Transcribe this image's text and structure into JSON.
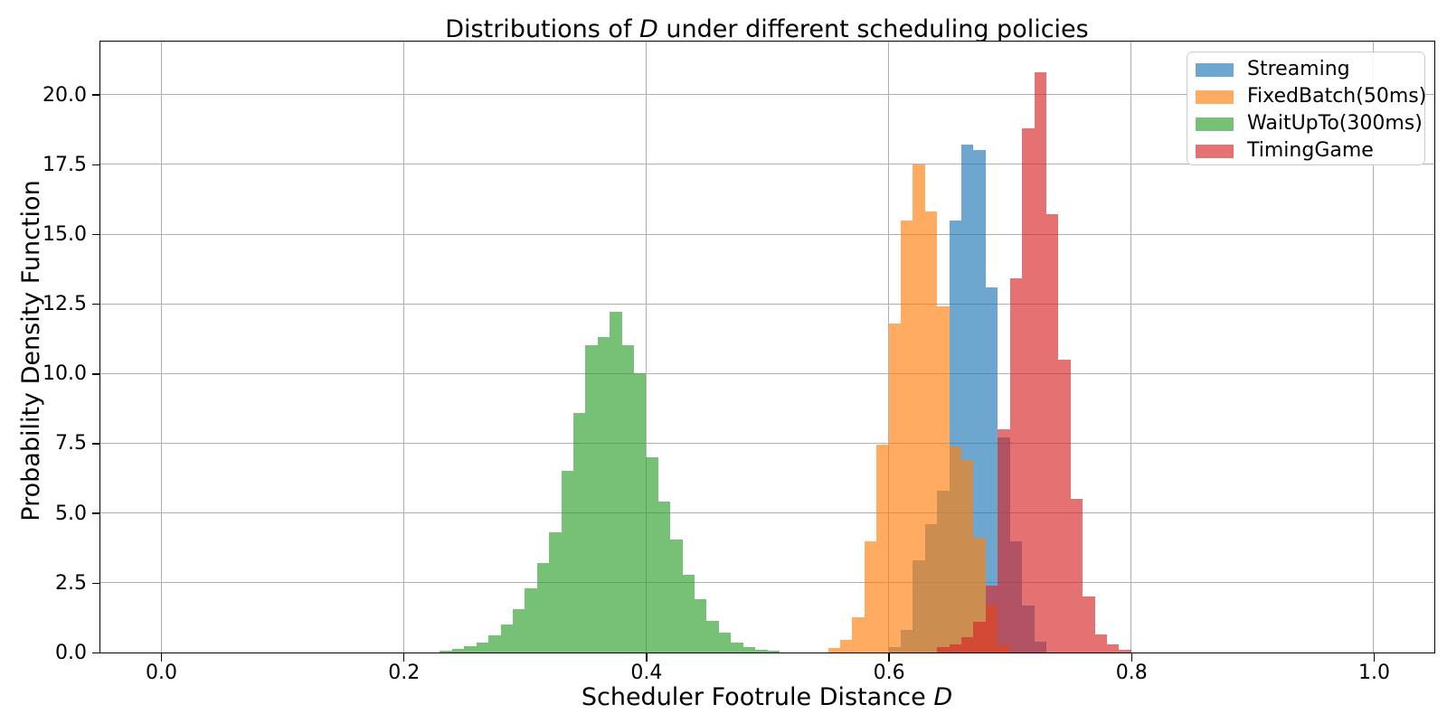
{
  "figure": {
    "title": {
      "pre": "Distributions of ",
      "italic": "D",
      "post": " under different scheduling policies"
    },
    "xlabel": {
      "pre": "Scheduler Footrule Distance ",
      "italic": "D"
    },
    "ylabel": "Probability Density Function"
  },
  "chart_data": {
    "type": "histogram",
    "overlay": true,
    "title": "Distributions of D under different scheduling policies",
    "xlabel": "Scheduler Footrule Distance D",
    "ylabel": "Probability Density Function",
    "bin_width": 0.01,
    "alpha": 0.65,
    "xlim": [
      -0.05,
      1.05
    ],
    "ylim": [
      0,
      21.9
    ],
    "grid": true,
    "grid_color": "#b0b0b0",
    "legend_position": "upper right",
    "xticks": {
      "values": [
        0.0,
        0.2,
        0.4,
        0.6,
        0.8,
        1.0
      ],
      "labels": [
        "0.0",
        "0.2",
        "0.4",
        "0.6",
        "0.8",
        "1.0"
      ]
    },
    "yticks": {
      "values": [
        0.0,
        2.5,
        5.0,
        7.5,
        10.0,
        12.5,
        15.0,
        17.5,
        20.0
      ],
      "labels": [
        "0.0",
        "2.5",
        "5.0",
        "7.5",
        "10.0",
        "12.5",
        "15.0",
        "17.5",
        "20.0"
      ]
    },
    "series": [
      {
        "name": "Streaming",
        "color": "#1f77b4",
        "bin_start": 0.6,
        "heights": [
          0.2,
          0.8,
          3.3,
          4.6,
          5.8,
          15.5,
          18.2,
          18.0,
          13.1,
          7.7,
          4.0,
          1.7,
          0.4
        ]
      },
      {
        "name": "FixedBatch(50ms)",
        "color": "#ff7f0e",
        "bin_start": 0.55,
        "heights": [
          0.15,
          0.45,
          1.25,
          4.0,
          7.45,
          11.8,
          15.5,
          17.5,
          15.8,
          12.4,
          7.4,
          6.9,
          4.1,
          1.7,
          0.25
        ]
      },
      {
        "name": "WaitUpTo(300ms)",
        "color": "#2ca02c",
        "bin_start": 0.23,
        "heights": [
          0.05,
          0.12,
          0.22,
          0.35,
          0.6,
          1.0,
          1.55,
          2.3,
          3.2,
          4.3,
          6.5,
          8.6,
          11.0,
          11.3,
          12.2,
          11.0,
          10.0,
          7.0,
          5.4,
          4.05,
          2.8,
          1.9,
          1.15,
          0.7,
          0.35,
          0.2,
          0.1,
          0.05
        ]
      },
      {
        "name": "TimingGame",
        "color": "#d62728",
        "bin_start": 0.64,
        "heights": [
          0.2,
          0.3,
          0.55,
          1.1,
          2.4,
          8.0,
          13.4,
          18.8,
          20.8,
          15.7,
          10.5,
          5.5,
          2.0,
          0.65,
          0.28,
          0.1
        ]
      }
    ]
  }
}
